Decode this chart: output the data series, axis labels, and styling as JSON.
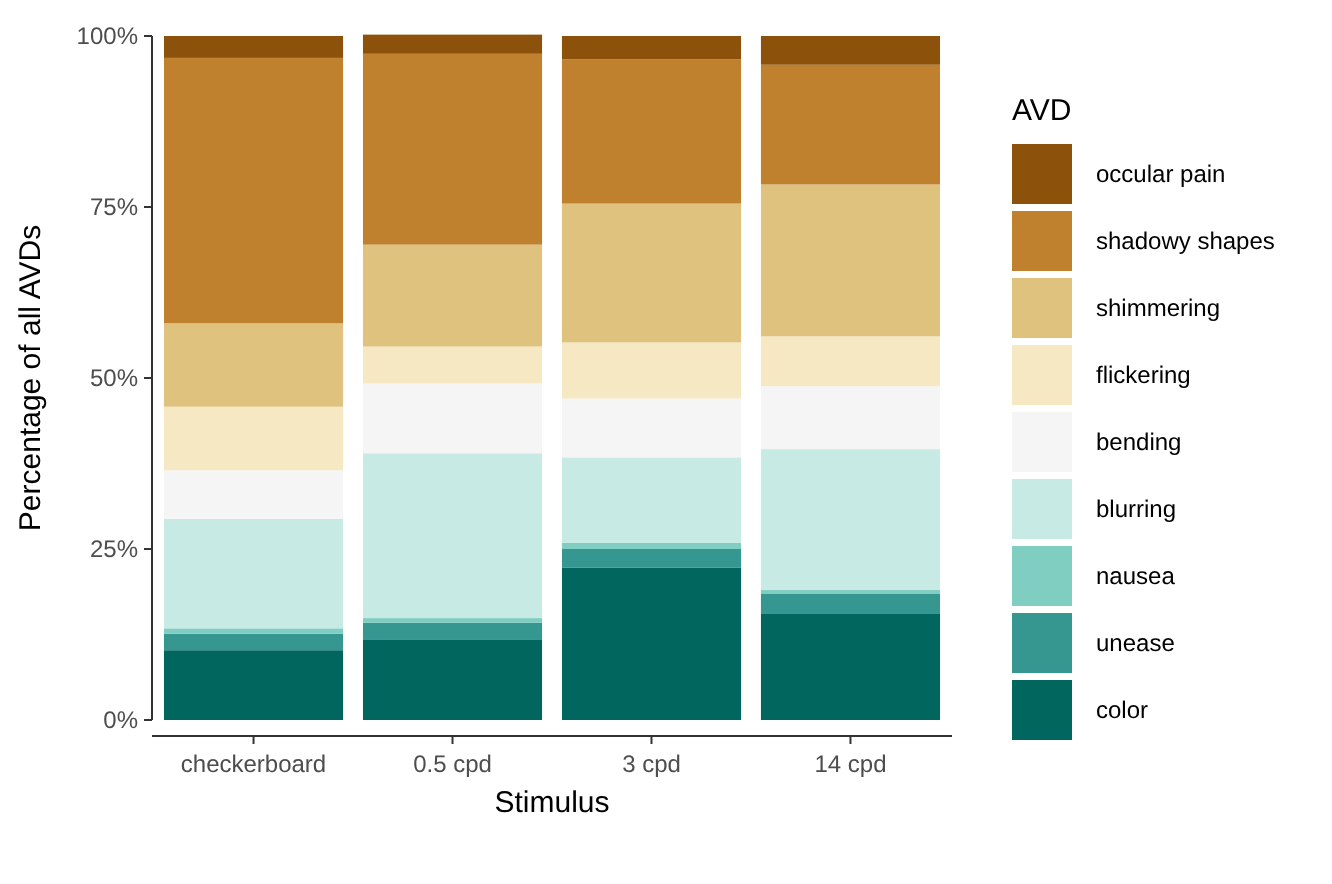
{
  "chart_data": {
    "type": "bar",
    "stacked": true,
    "xlabel": "Stimulus",
    "ylabel": "Percentage of all AVDs",
    "legend_title": "AVD",
    "legend": "right",
    "grid": false,
    "categories": [
      "checkerboard",
      "0.5 cpd",
      "3 cpd",
      "14 cpd"
    ],
    "ylim": [
      0,
      100
    ],
    "yticks": [
      {
        "value": 0,
        "label": "0%"
      },
      {
        "value": 25,
        "label": "25%"
      },
      {
        "value": 50,
        "label": "50%"
      },
      {
        "value": 75,
        "label": "75%"
      },
      {
        "value": 100,
        "label": "100%"
      }
    ],
    "series": [
      {
        "name": "color",
        "color": "#01665e",
        "values": [
          10.2,
          11.7,
          22.3,
          15.5
        ]
      },
      {
        "name": "unease",
        "color": "#35978f",
        "values": [
          2.4,
          2.5,
          2.7,
          3.0
        ]
      },
      {
        "name": "nausea",
        "color": "#80cdc1",
        "values": [
          0.8,
          0.7,
          0.9,
          0.5
        ]
      },
      {
        "name": "blurring",
        "color": "#c7eae5",
        "values": [
          16.0,
          24.1,
          12.5,
          20.6
        ]
      },
      {
        "name": "bending",
        "color": "#f5f5f5",
        "values": [
          7.1,
          10.2,
          8.6,
          9.2
        ]
      },
      {
        "name": "flickering",
        "color": "#f6e8c3",
        "values": [
          9.3,
          5.4,
          8.2,
          7.3
        ]
      },
      {
        "name": "shimmering",
        "color": "#dfc27d",
        "values": [
          12.2,
          14.9,
          20.3,
          22.2
        ]
      },
      {
        "name": "shadowy shapes",
        "color": "#bf812d",
        "values": [
          38.8,
          27.9,
          21.1,
          17.5
        ]
      },
      {
        "name": "occular pain",
        "color": "#8c510a",
        "values": [
          3.2,
          2.8,
          3.4,
          4.2
        ]
      }
    ]
  }
}
